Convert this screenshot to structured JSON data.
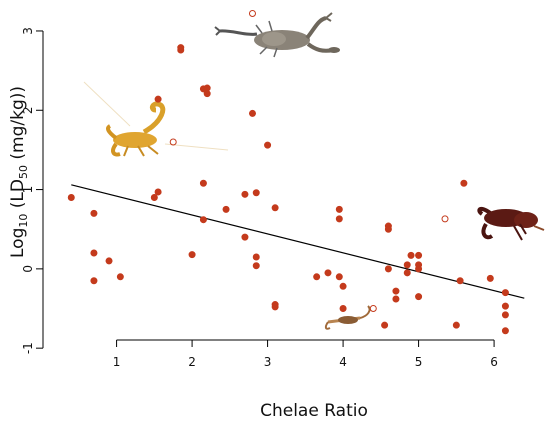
{
  "chart_data": {
    "type": "scatter",
    "title": "",
    "xlabel": "Chelae Ratio",
    "ylabel": "Log10 (LD50 (mg/kg))",
    "xlim": [
      0.33,
      6.4
    ],
    "ylim": [
      -1,
      3.05
    ],
    "x_ticks": [
      1,
      2,
      3,
      4,
      5,
      6
    ],
    "y_ticks": [
      -1,
      0,
      1,
      2,
      3
    ],
    "grid": false,
    "legend": "none",
    "colors": {
      "point": "#c43a1c",
      "trendline": "#000000"
    },
    "trendline": {
      "x": [
        0.4,
        6.4
      ],
      "y": [
        1.06,
        -0.37
      ]
    },
    "series": [
      {
        "marker": "filled",
        "points": [
          [
            0.4,
            0.9
          ],
          [
            0.7,
            0.7
          ],
          [
            0.7,
            0.2
          ],
          [
            0.7,
            -0.15
          ],
          [
            0.9,
            0.1
          ],
          [
            1.05,
            -0.1
          ],
          [
            1.5,
            0.9
          ],
          [
            1.55,
            0.97
          ],
          [
            1.55,
            2.14
          ],
          [
            1.85,
            2.76
          ],
          [
            1.85,
            2.79
          ],
          [
            2.0,
            0.18
          ],
          [
            2.15,
            1.08
          ],
          [
            2.15,
            0.62
          ],
          [
            2.15,
            2.27
          ],
          [
            2.2,
            2.21
          ],
          [
            2.2,
            2.28
          ],
          [
            2.45,
            0.75
          ],
          [
            2.7,
            0.94
          ],
          [
            2.7,
            0.4
          ],
          [
            2.8,
            1.96
          ],
          [
            2.85,
            0.96
          ],
          [
            2.85,
            0.15
          ],
          [
            2.85,
            0.04
          ],
          [
            3.0,
            1.56
          ],
          [
            3.1,
            0.77
          ],
          [
            3.1,
            -0.45
          ],
          [
            3.1,
            -0.48
          ],
          [
            3.65,
            -0.1
          ],
          [
            3.8,
            -0.05
          ],
          [
            3.95,
            0.75
          ],
          [
            3.95,
            0.63
          ],
          [
            3.95,
            -0.1
          ],
          [
            4.0,
            -0.5
          ],
          [
            4.0,
            -0.22
          ],
          [
            4.55,
            -0.71
          ],
          [
            4.6,
            0.54
          ],
          [
            4.6,
            0.5
          ],
          [
            4.6,
            0.0
          ],
          [
            4.7,
            -0.28
          ],
          [
            4.7,
            -0.38
          ],
          [
            4.85,
            0.05
          ],
          [
            4.85,
            -0.05
          ],
          [
            4.9,
            0.17
          ],
          [
            5.0,
            0.17
          ],
          [
            5.0,
            0.05
          ],
          [
            5.0,
            0.0
          ],
          [
            5.0,
            -0.35
          ],
          [
            5.5,
            -0.71
          ],
          [
            5.55,
            -0.15
          ],
          [
            5.6,
            1.08
          ],
          [
            5.95,
            -0.12
          ],
          [
            6.15,
            -0.3
          ],
          [
            6.15,
            -0.47
          ],
          [
            6.15,
            -0.58
          ],
          [
            6.15,
            -0.78
          ]
        ]
      },
      {
        "marker": "open",
        "points": [
          [
            1.75,
            1.6
          ],
          [
            2.8,
            3.22
          ],
          [
            4.4,
            -0.5
          ],
          [
            5.35,
            0.63
          ]
        ]
      }
    ],
    "illustrations": [
      "scorpion-gray",
      "scorpion-yellow",
      "scorpion-dark-red",
      "scorpion-small-brown"
    ]
  }
}
